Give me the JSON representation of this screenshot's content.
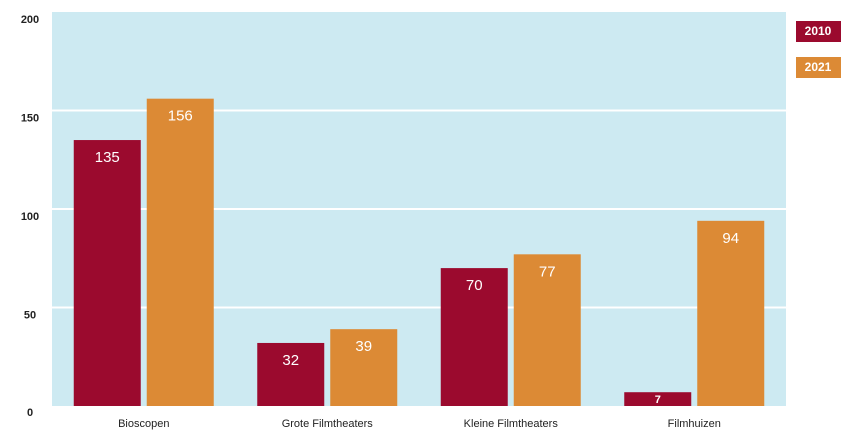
{
  "chart_data": {
    "type": "bar",
    "categories": [
      "Bioscopen",
      "Grote Filmtheaters",
      "Kleine Filmtheaters",
      "Filmhuizen"
    ],
    "series": [
      {
        "name": "2010",
        "color": "#9b0a2e",
        "values": [
          135,
          32,
          70,
          7
        ]
      },
      {
        "name": "2021",
        "color": "#dc8a35",
        "values": [
          156,
          39,
          77,
          94
        ]
      }
    ],
    "ylim": [
      0,
      200
    ],
    "yticks": [
      0,
      50,
      100,
      150,
      200
    ],
    "grid": true,
    "legend": "top-right"
  }
}
